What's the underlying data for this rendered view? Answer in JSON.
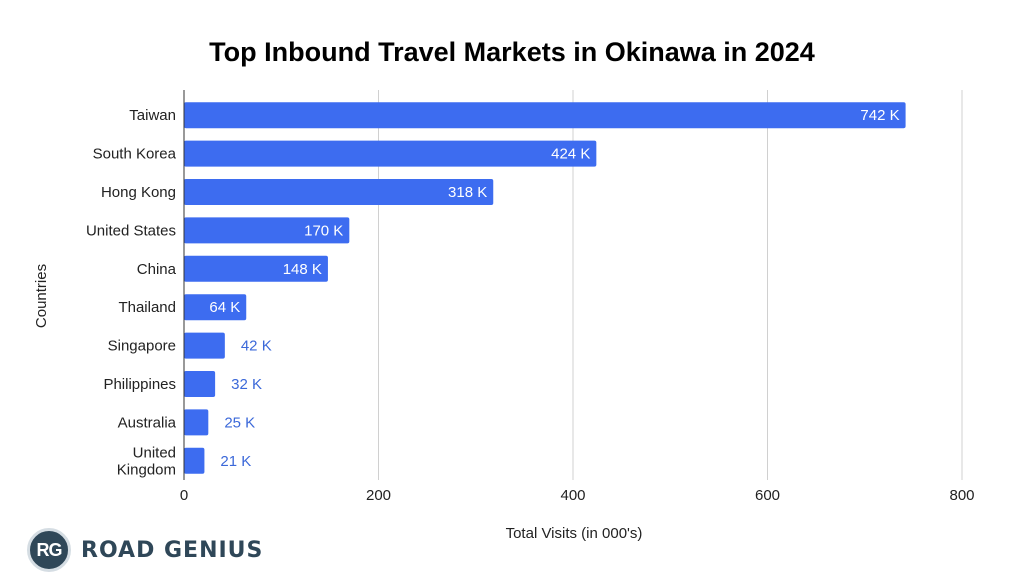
{
  "chart_data": {
    "type": "bar",
    "orientation": "horizontal",
    "title": "Top Inbound Travel Markets in Okinawa in 2024",
    "xlabel": "Total Visits (in 000's)",
    "ylabel": "Countries",
    "categories": [
      "Taiwan",
      "South Korea",
      "Hong Kong",
      "United States",
      "China",
      "Thailand",
      "Singapore",
      "Philippines",
      "Australia",
      "United Kingdom"
    ],
    "category_lines": [
      [
        "Taiwan"
      ],
      [
        "South Korea"
      ],
      [
        "Hong Kong"
      ],
      [
        "United States"
      ],
      [
        "China"
      ],
      [
        "Thailand"
      ],
      [
        "Singapore"
      ],
      [
        "Philippines"
      ],
      [
        "Australia"
      ],
      [
        "United",
        "Kingdom"
      ]
    ],
    "values": [
      742,
      424,
      318,
      170,
      148,
      64,
      42,
      32,
      25,
      21
    ],
    "value_labels": [
      "742 K",
      "424 K",
      "318 K",
      "170 K",
      "148 K",
      "64 K",
      "42 K",
      "32 K",
      "25 K",
      "21 K"
    ],
    "xlim": [
      0,
      800
    ],
    "xticks": [
      0,
      200,
      400,
      600,
      800
    ],
    "xtick_labels": [
      "0",
      "200",
      "400",
      "600",
      "800"
    ],
    "grid": true,
    "bar_color": "#3d6cf0",
    "outside_label_color": "#3b68d9"
  },
  "logo": {
    "badge_text": "RG",
    "brand_text": "ROAD GENIUS"
  }
}
